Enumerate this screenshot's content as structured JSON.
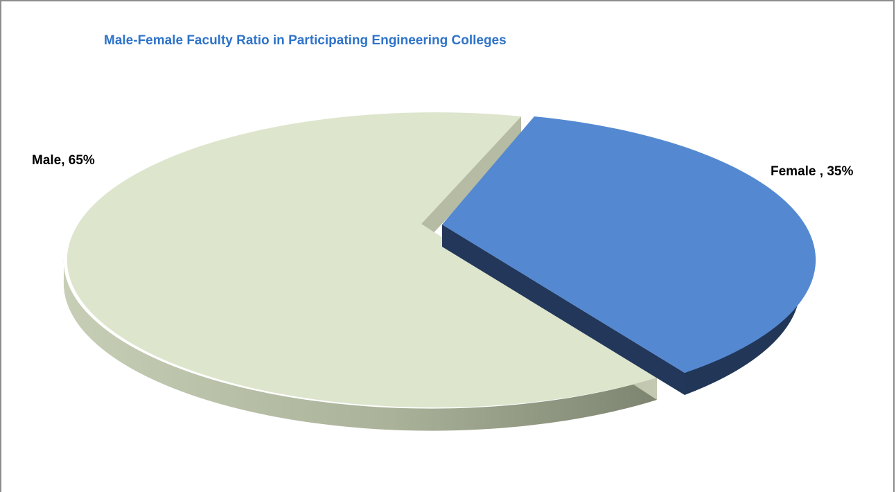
{
  "chart_data": {
    "type": "pie",
    "title": "Male-Female Faculty Ratio in Participating Engineering Colleges",
    "categories": [
      "Male",
      "Female"
    ],
    "values": [
      65,
      35
    ],
    "labels": [
      "Male, 65%",
      "Female , 35%"
    ],
    "colors": {
      "Male": "#dde5cd",
      "Female": "#5489d1"
    },
    "exploded": "Female",
    "legend": "none",
    "style": "3d"
  }
}
